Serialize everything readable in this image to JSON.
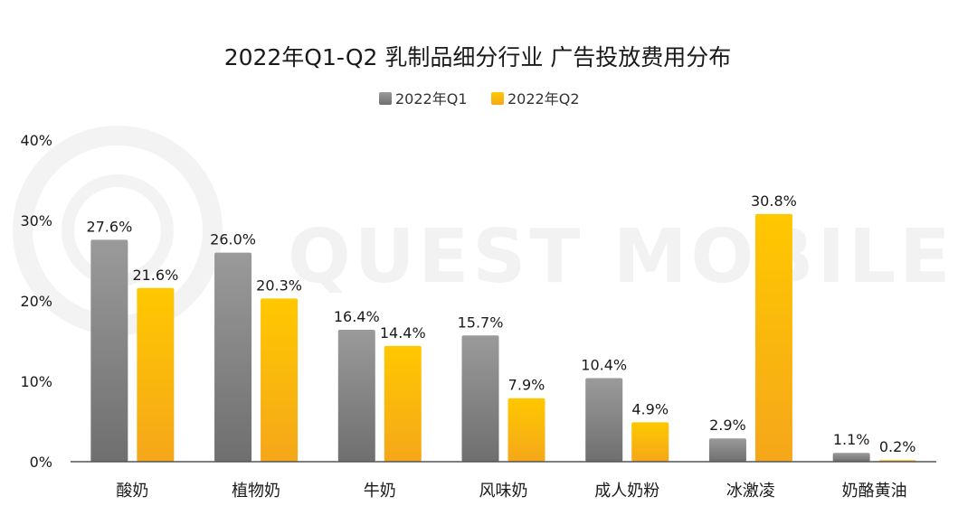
{
  "chart_data": {
    "type": "bar",
    "title": "2022年Q1-Q2 乳制品细分行业 广告投放费用分布",
    "categories": [
      "酸奶",
      "植物奶",
      "牛奶",
      "风味奶",
      "成人奶粉",
      "冰激凌",
      "奶酪黄油"
    ],
    "series": [
      {
        "name": "2022年Q1",
        "values": [
          27.6,
          26.0,
          16.4,
          15.7,
          10.4,
          2.9,
          1.1
        ],
        "labels": [
          "27.6%",
          "26.0%",
          "16.4%",
          "15.7%",
          "10.4%",
          "2.9%",
          "1.1%"
        ],
        "color": "#8c8c8c"
      },
      {
        "name": "2022年Q2",
        "values": [
          21.6,
          20.3,
          14.4,
          7.9,
          4.9,
          30.8,
          0.2
        ],
        "labels": [
          "21.6%",
          "20.3%",
          "14.4%",
          "7.9%",
          "4.9%",
          "30.8%",
          "0.2%"
        ],
        "color": "#ffc000"
      }
    ],
    "yticks": [
      0,
      10,
      20,
      30,
      40
    ],
    "ytick_labels": [
      "0%",
      "10%",
      "20%",
      "30%",
      "40%"
    ],
    "ylim": [
      0,
      40
    ],
    "grid": false,
    "legend_position": "top-center",
    "watermark": "QUEST MOBILE"
  }
}
